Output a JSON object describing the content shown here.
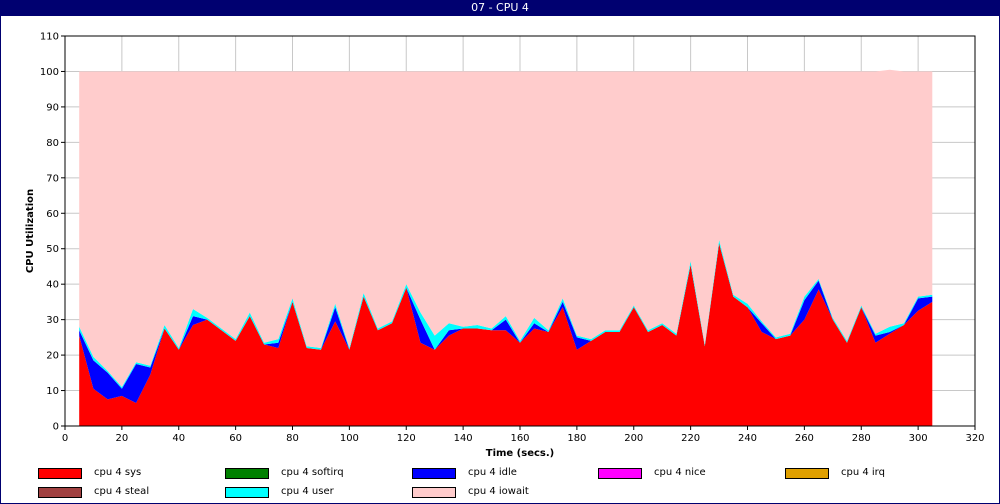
{
  "window": {
    "title": "07 - CPU 4"
  },
  "chart_data": {
    "type": "area",
    "stacked": true,
    "xlabel": "Time (secs.)",
    "ylabel": "CPU Utilization",
    "xlim": [
      0,
      320
    ],
    "ylim": [
      0,
      110
    ],
    "xticks": [
      0,
      20,
      40,
      60,
      80,
      100,
      120,
      140,
      160,
      180,
      200,
      220,
      240,
      260,
      280,
      300,
      320
    ],
    "yticks": [
      0,
      10,
      20,
      30,
      40,
      50,
      60,
      70,
      80,
      90,
      100,
      110
    ],
    "grid": true,
    "legend_position": "bottom",
    "x": [
      5,
      10,
      15,
      20,
      25,
      30,
      35,
      40,
      45,
      50,
      55,
      60,
      65,
      70,
      75,
      80,
      85,
      90,
      95,
      100,
      105,
      110,
      115,
      120,
      125,
      130,
      135,
      140,
      145,
      150,
      155,
      160,
      165,
      170,
      175,
      180,
      185,
      190,
      195,
      200,
      205,
      210,
      215,
      220,
      225,
      230,
      235,
      240,
      245,
      250,
      255,
      260,
      265,
      270,
      275,
      280,
      285,
      290,
      295,
      300,
      305
    ],
    "series": [
      {
        "name": "cpu 4 sys",
        "color": "#ff0000",
        "values": [
          25.5,
          10.5,
          7.5,
          8.5,
          6.5,
          14.5,
          27.5,
          21.5,
          28.5,
          30,
          27,
          24,
          31,
          23,
          22,
          35,
          22,
          21.5,
          29.5,
          21.5,
          36.5,
          27,
          29,
          39,
          23.5,
          21.5,
          25.5,
          27.5,
          27.5,
          27,
          27,
          23.5,
          27.5,
          26.5,
          33.5,
          21.5,
          24,
          26.5,
          26.5,
          33.5,
          26.5,
          28.5,
          25.5,
          45.5,
          22.5,
          51.5,
          36.5,
          33.5,
          26.5,
          24.5,
          25.5,
          30,
          38.5,
          30,
          23.5,
          33.5,
          23.5,
          26,
          28.5,
          32.5,
          35
        ]
      },
      {
        "name": "cpu 4 softirq",
        "color": "#008000",
        "values": [
          0,
          0,
          0,
          0,
          0,
          0,
          0,
          0,
          0,
          0,
          0,
          0,
          0,
          0,
          0,
          0,
          0,
          0,
          0,
          0,
          0,
          0,
          0,
          0,
          0,
          0,
          0,
          0,
          0,
          0,
          0,
          0,
          0,
          0,
          0,
          0,
          0,
          0,
          0,
          0,
          0,
          0,
          0,
          0,
          0,
          0,
          0,
          0,
          0,
          0,
          0,
          0,
          0,
          0,
          0,
          0,
          0,
          0,
          0,
          0,
          0
        ]
      },
      {
        "name": "cpu 4 idle",
        "color": "#0000ff",
        "values": [
          1.5,
          8,
          7.5,
          2,
          11,
          2,
          0,
          0,
          2.5,
          0,
          0,
          0,
          0,
          0,
          1.5,
          0,
          0,
          0,
          4,
          0,
          0,
          0,
          0,
          0,
          6.5,
          0,
          1.5,
          0,
          0,
          0,
          3,
          0,
          1.5,
          0,
          1.5,
          3.5,
          0,
          0,
          0,
          0,
          0,
          0,
          0,
          0,
          0,
          0,
          0,
          0,
          2.5,
          0,
          0,
          5.5,
          2.5,
          0,
          0,
          0,
          2,
          0.5,
          0,
          3.5,
          1.5
        ]
      },
      {
        "name": "cpu 4 nice",
        "color": "#ff00ff",
        "values": [
          0,
          0,
          0,
          0,
          0,
          0,
          0,
          0,
          0,
          0,
          0,
          0,
          0,
          0,
          0,
          0,
          0,
          0,
          0,
          0,
          0,
          0,
          0,
          0,
          0,
          0,
          0,
          0,
          0,
          0,
          0,
          0,
          0,
          0,
          0,
          0,
          0,
          0,
          0,
          0,
          0,
          0,
          0,
          0,
          0,
          0,
          0,
          0,
          0,
          0,
          0,
          0,
          0,
          0,
          0,
          0,
          0,
          0,
          0,
          0,
          0
        ]
      },
      {
        "name": "cpu 4 irq",
        "color": "#e0a000",
        "values": [
          0,
          0,
          0,
          0,
          0,
          0,
          0,
          0,
          0,
          0,
          0,
          0,
          0,
          0,
          0,
          0,
          0,
          0,
          0,
          0,
          0,
          0,
          0,
          0,
          0,
          0,
          0,
          0,
          0,
          0,
          0,
          0,
          0,
          0,
          0,
          0,
          0,
          0,
          0,
          0,
          0,
          0,
          0,
          0,
          0,
          0,
          0,
          0,
          0,
          0,
          0,
          0,
          0,
          0,
          0,
          0,
          0,
          0,
          0,
          0,
          0
        ]
      },
      {
        "name": "cpu 4 steal",
        "color": "#a04040",
        "values": [
          0,
          0,
          0,
          0,
          0,
          0,
          0,
          0,
          0,
          0,
          0,
          0,
          0,
          0,
          0,
          0,
          0,
          0,
          0,
          0,
          0,
          0,
          0,
          0,
          0,
          0,
          0,
          0,
          0,
          0,
          0,
          0,
          0,
          0,
          0,
          0,
          0,
          0,
          0,
          0,
          0,
          0,
          0,
          0,
          0,
          0,
          0,
          0,
          0,
          0,
          0,
          0,
          0,
          0,
          0,
          0,
          0,
          0,
          0,
          0,
          0
        ]
      },
      {
        "name": "cpu 4 user",
        "color": "#00ffff",
        "values": [
          1,
          1,
          0.5,
          0.5,
          0.5,
          0.5,
          1,
          0.5,
          2,
          0.5,
          0.5,
          0.5,
          1,
          0.5,
          1,
          1,
          0.5,
          0.5,
          1,
          0.5,
          1,
          0.5,
          0.5,
          1,
          2,
          4,
          2,
          0.5,
          1,
          0.5,
          1,
          0.5,
          1.5,
          0.5,
          1,
          0.5,
          0.5,
          0.5,
          0.5,
          0.5,
          0.5,
          0.5,
          0.5,
          1,
          0.5,
          1,
          0.5,
          1,
          0.5,
          0.5,
          0.5,
          1,
          0.5,
          0.5,
          0.5,
          0.5,
          0.5,
          1.5,
          0.5,
          0.5,
          0.5
        ]
      },
      {
        "name": "cpu 4 iowait",
        "color": "#ffcccc",
        "values": [
          72,
          80.5,
          84.5,
          89,
          82,
          83,
          71.5,
          78,
          67,
          69.5,
          72.5,
          75.5,
          68,
          76.5,
          75.5,
          64,
          77.5,
          78,
          65.5,
          78,
          62.5,
          72.5,
          70.5,
          60,
          68,
          74.5,
          71,
          72,
          71.5,
          72.5,
          69,
          76,
          69.5,
          73,
          64,
          74.5,
          75.5,
          73,
          73,
          66,
          73,
          71,
          74,
          53.5,
          77,
          47.5,
          63,
          65.5,
          70.5,
          75,
          74,
          63.5,
          58.5,
          69.5,
          76,
          66,
          74,
          72.5,
          71,
          63.5,
          63
        ]
      }
    ]
  },
  "legend": {
    "items": [
      {
        "label": "cpu 4 sys",
        "color": "#ff0000"
      },
      {
        "label": "cpu 4 softirq",
        "color": "#008000"
      },
      {
        "label": "cpu 4 idle",
        "color": "#0000ff"
      },
      {
        "label": "cpu 4 nice",
        "color": "#ff00ff"
      },
      {
        "label": "cpu 4 irq",
        "color": "#e0a000"
      },
      {
        "label": "cpu 4 steal",
        "color": "#a04040"
      },
      {
        "label": "cpu 4 user",
        "color": "#00ffff"
      },
      {
        "label": "cpu 4 iowait",
        "color": "#ffcccc"
      }
    ]
  }
}
